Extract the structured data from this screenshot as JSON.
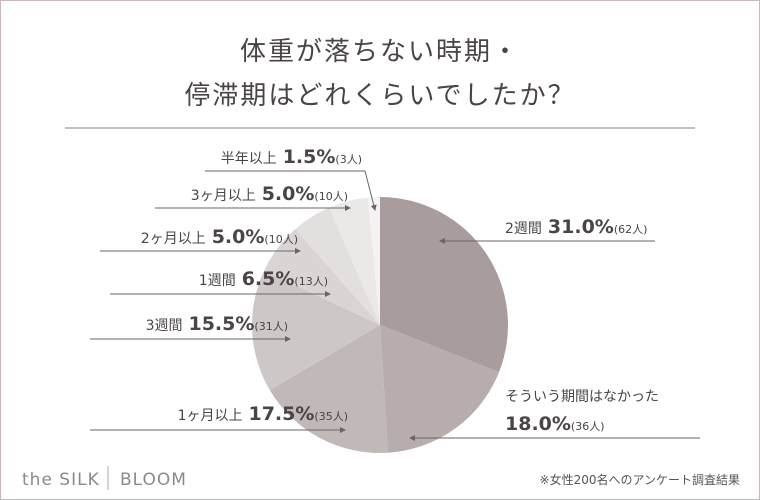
{
  "chart_data": {
    "type": "pie",
    "title_lines": [
      "体重が落ちない時期・",
      "停滞期はどれくらいでしたか？"
    ],
    "categories": [
      "2週間",
      "そういう期間はなかった",
      "1ヶ月以上",
      "3週間",
      "1週間",
      "2ヶ月以上",
      "3ヶ月以上",
      "半年以上"
    ],
    "values": [
      31.0,
      18.0,
      17.5,
      15.5,
      6.5,
      5.0,
      5.0,
      1.5
    ],
    "value_labels": [
      "31.0%",
      "18.0%",
      "17.5%",
      "15.5%",
      "6.5%",
      "5.0%",
      "5.0%",
      "1.5%"
    ],
    "count_labels": [
      "(62人)",
      "(36人)",
      "(35人)",
      "(31人)",
      "(13人)",
      "(10人)",
      "(10人)",
      "(3人)"
    ],
    "colors": [
      "#a99c9c",
      "#b8adad",
      "#c1b8b8",
      "#cec7c7",
      "#dad4d4",
      "#e3dfdf",
      "#ebe8e8",
      "#f4f2f2"
    ],
    "note": "※女性200名へのアンケート調査結果",
    "brand": [
      "the SILK",
      "BLOOM"
    ]
  }
}
